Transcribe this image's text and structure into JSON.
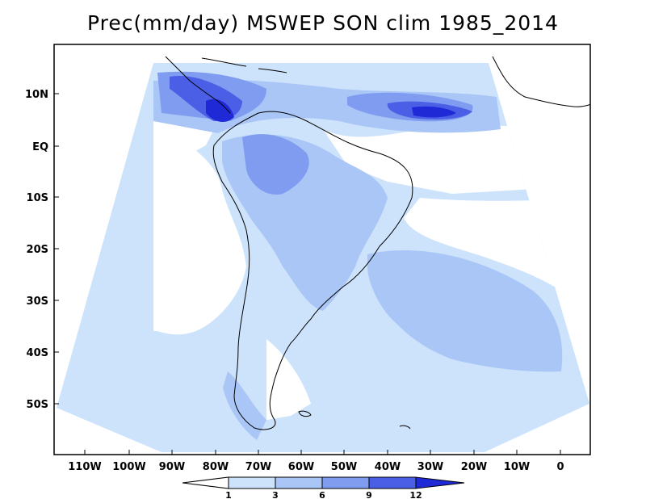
{
  "title": "Prec(mm/day) MSWEP SON clim 1985_2014",
  "map": {
    "variable": "Precipitation",
    "units": "mm/day",
    "dataset": "MSWEP",
    "season": "SON",
    "period": "1985_2014",
    "lat_labels": [
      "10N",
      "EQ",
      "10S",
      "20S",
      "30S",
      "40S",
      "50S"
    ],
    "lon_labels": [
      "110W",
      "100W",
      "90W",
      "80W",
      "70W",
      "60W",
      "50W",
      "40W",
      "30W",
      "20W",
      "10W",
      "0"
    ]
  },
  "colorbar": {
    "levels": [
      "1",
      "3",
      "6",
      "9",
      "12"
    ],
    "colors": [
      "#ffffff",
      "#cde3fb",
      "#a9c6f6",
      "#7f9cf0",
      "#4a5ee6",
      "#1f2ad6"
    ]
  },
  "colors": {
    "land_outline": "#000000",
    "background": "#ffffff"
  }
}
